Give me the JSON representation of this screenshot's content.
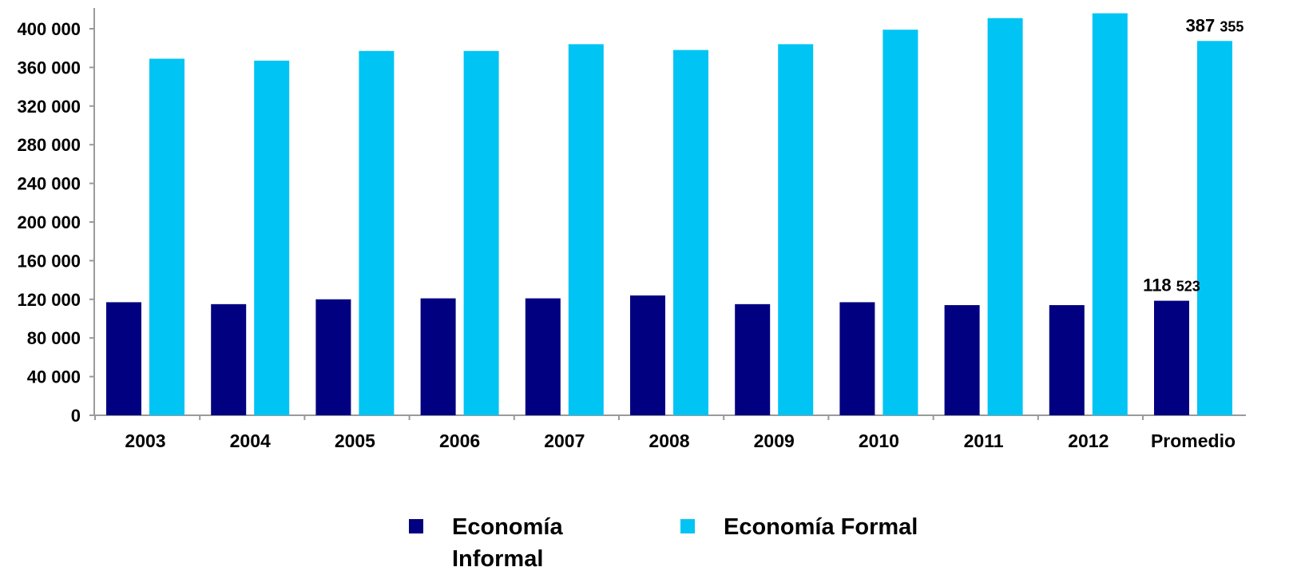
{
  "chart_data": {
    "type": "bar",
    "categories": [
      "2003",
      "2004",
      "2005",
      "2006",
      "2007",
      "2008",
      "2009",
      "2010",
      "2011",
      "2012",
      "Promedio"
    ],
    "series": [
      {
        "name": "Economía Informal",
        "color": "#000080",
        "values": [
          117000,
          115000,
          120000,
          121000,
          121000,
          124000,
          115000,
          117000,
          114000,
          114000,
          118523
        ]
      },
      {
        "name": "Economía Formal",
        "color": "#00c4f4",
        "values": [
          369000,
          367000,
          377000,
          377000,
          384000,
          378000,
          384000,
          399000,
          411000,
          416000,
          387355
        ]
      }
    ],
    "ylim": [
      0,
      420000
    ],
    "yticks": [
      0,
      40000,
      80000,
      120000,
      160000,
      200000,
      240000,
      280000,
      320000,
      360000,
      400000
    ],
    "ytick_labels": [
      "0",
      "40 000",
      "80 000",
      "120 000",
      "160 000",
      "200 000",
      "240 000",
      "280 000",
      "320 000",
      "360 000",
      "400 000"
    ],
    "data_labels": [
      {
        "category": "Promedio",
        "series": "Economía Informal",
        "bold_part": "118",
        "rest": "523"
      },
      {
        "category": "Promedio",
        "series": "Economía Formal",
        "bold_part": "387",
        "rest": "355"
      }
    ],
    "legend": {
      "position": "bottom",
      "items": [
        {
          "line1": "Economía",
          "line2": "Informal",
          "color": "#000080"
        },
        {
          "line1": "Economía Formal",
          "line2": "",
          "color": "#00c4f4"
        }
      ]
    },
    "grid": false
  }
}
